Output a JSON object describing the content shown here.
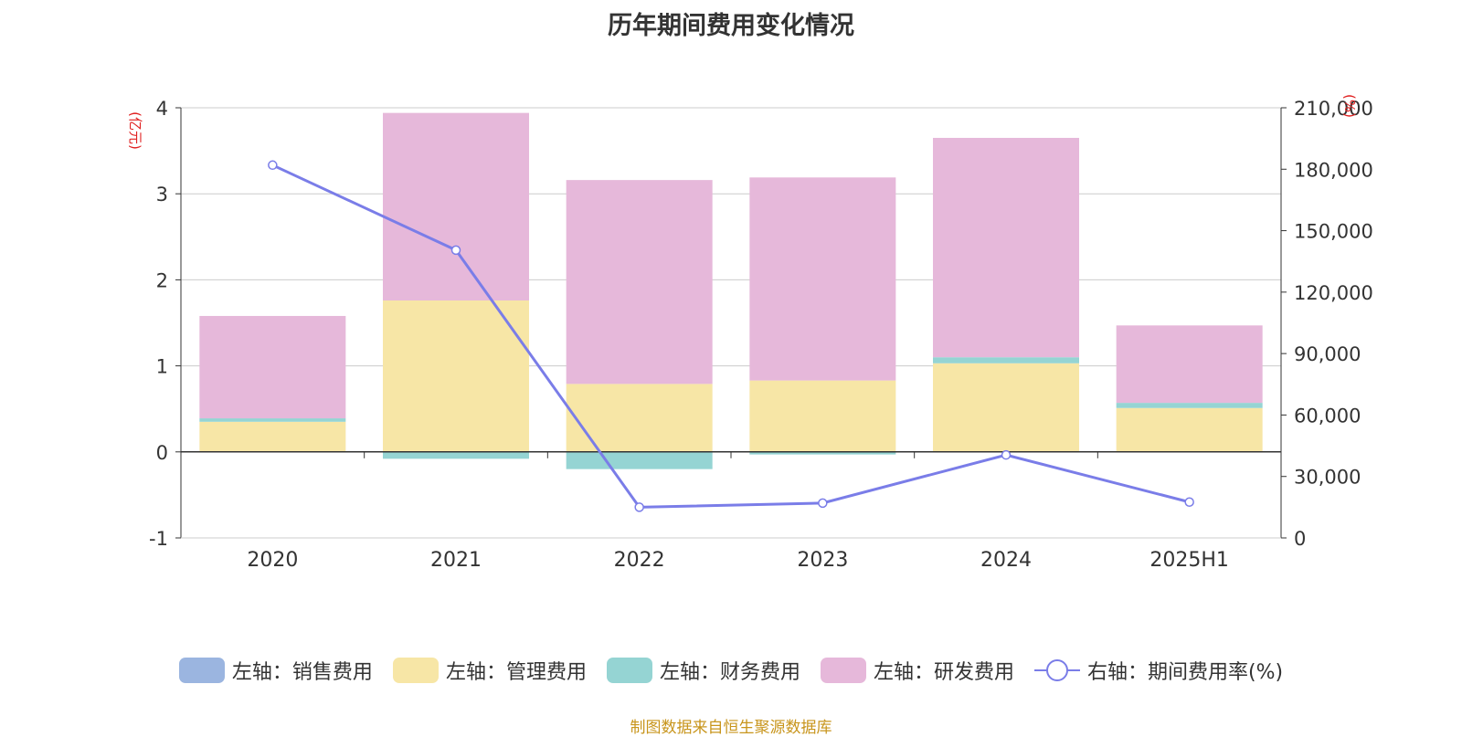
{
  "title": "历年期间费用变化情况",
  "left_axis_unit": "(亿元)",
  "right_axis_unit": "(%)",
  "source": "制图数据来自恒生聚源数据库",
  "colors": {
    "sales": "#9bb5e0",
    "admin": "#f7e6a6",
    "finance": "#95d4d3",
    "rd": "#e6b8da",
    "ratio": "#7a7de8",
    "axis": "#333333",
    "grid": "#cccccc",
    "unit": "#e02020"
  },
  "chart_data": {
    "type": "bar",
    "stacked": true,
    "title": "历年期间费用变化情况",
    "categories": [
      "2020",
      "2021",
      "2022",
      "2023",
      "2024",
      "2025H1"
    ],
    "y_left": {
      "label": "(亿元)",
      "min": -1,
      "max": 4,
      "ticks": [
        -1,
        0,
        1,
        2,
        3,
        4
      ]
    },
    "y_right": {
      "label": "(%)",
      "min": 0,
      "max": 210000,
      "ticks": [
        0,
        30000,
        60000,
        90000,
        120000,
        150000,
        180000,
        210000
      ],
      "tick_labels": [
        "0",
        "30,000",
        "60,000",
        "90,000",
        "120,000",
        "150,000",
        "180,000",
        "210,000"
      ]
    },
    "series": [
      {
        "name": "左轴：销售费用",
        "axis": "left",
        "type": "bar",
        "key": "sales",
        "values": [
          0,
          0,
          0,
          0,
          0,
          0
        ]
      },
      {
        "name": "左轴：管理费用",
        "axis": "left",
        "type": "bar",
        "key": "admin",
        "values": [
          0.35,
          1.76,
          0.79,
          0.83,
          1.03,
          0.51
        ]
      },
      {
        "name": "左轴：财务费用",
        "axis": "left",
        "type": "bar",
        "key": "finance",
        "values": [
          0.04,
          -0.08,
          -0.2,
          -0.03,
          0.07,
          0.06
        ]
      },
      {
        "name": "左轴：研发费用",
        "axis": "left",
        "type": "bar",
        "key": "rd",
        "values": [
          1.19,
          2.18,
          2.37,
          2.36,
          2.55,
          0.9
        ]
      },
      {
        "name": "右轴：期间费用率(%)",
        "axis": "right",
        "type": "line",
        "key": "ratio",
        "values": [
          182000,
          140500,
          15000,
          17000,
          40500,
          17500
        ]
      }
    ],
    "grid": true,
    "legend_position": "bottom"
  }
}
